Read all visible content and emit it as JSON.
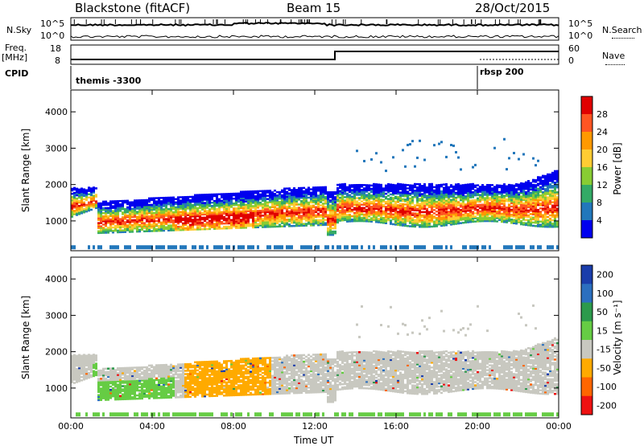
{
  "header": {
    "station": "Blackstone (fitACF)",
    "beam": "Beam 15",
    "date": "28/Oct/2015"
  },
  "top_panels": {
    "nsky_label": "N.Sky",
    "nsky_ticks": [
      "10^5",
      "10^0"
    ],
    "nsearch_label": "N.Search",
    "nsearch_ticks": [
      "10^5",
      "10^0"
    ],
    "freq_label_1": "Freq.",
    "freq_label_2": "[MHz]",
    "freq_ticks": [
      "18",
      "8"
    ],
    "nave_label": "Nave",
    "nave_ticks": [
      "60",
      "0"
    ],
    "cpid_label": "CPID",
    "cpid_segments": [
      {
        "label": "themis -3300",
        "start_hour": 0,
        "end_hour": 20
      },
      {
        "label": "rbsp 200",
        "start_hour": 20,
        "end_hour": 24
      }
    ]
  },
  "chart_data": [
    {
      "type": "heatmap",
      "panel": "power",
      "ylabel": "Slant Range [km]",
      "xlabel": "Time UT",
      "x_unit": "hours UT",
      "xlim": [
        0,
        24
      ],
      "ylim": [
        180,
        4600
      ],
      "x_ticks": [
        "00:00",
        "04:00",
        "08:00",
        "12:00",
        "16:00",
        "20:00",
        "00:00"
      ],
      "y_ticks": [
        1000,
        2000,
        3000,
        4000
      ],
      "colorbar": {
        "label": "Power [dB]",
        "ticks": [
          "28",
          "24",
          "20",
          "16",
          "12",
          "8",
          "4"
        ],
        "colors": [
          "#e00000",
          "#ff5522",
          "#ff9900",
          "#ffcc33",
          "#88cc33",
          "#33aa66",
          "#2277bb",
          "#0000ee"
        ]
      },
      "features": [
        {
          "name": "main scatter band",
          "start_hour": 0.0,
          "end_hour": 12.8,
          "range_km": [
            700,
            1900
          ],
          "peak_db": 28
        },
        {
          "name": "post-midnight band",
          "start_hour": 13.0,
          "end_hour": 24.0,
          "range_km": [
            900,
            2000
          ],
          "peak_db": 24
        },
        {
          "name": "far range echoes",
          "start_hour": 14.0,
          "end_hour": 23.0,
          "range_km": [
            2400,
            3300
          ],
          "peak_db": 8
        }
      ]
    },
    {
      "type": "heatmap",
      "panel": "velocity",
      "ylabel": "Slant Range [km]",
      "xlabel": "Time UT",
      "x_unit": "hours UT",
      "xlim": [
        0,
        24
      ],
      "ylim": [
        180,
        4600
      ],
      "x_ticks": [
        "00:00",
        "04:00",
        "08:00",
        "12:00",
        "16:00",
        "20:00",
        "00:00"
      ],
      "y_ticks": [
        1000,
        2000,
        3000,
        4000
      ],
      "colorbar": {
        "label": "Velocity [m s⁻¹]",
        "ticks": [
          "200",
          "100",
          "50",
          "15",
          "-15",
          "-50",
          "-100",
          "-200"
        ],
        "colors": [
          "#1a3dab",
          "#2b6fbf",
          "#2c9a4c",
          "#66cc44",
          "#c8c8c0",
          "#ffaa00",
          "#ff6600",
          "#ee1111"
        ]
      },
      "features": [
        {
          "name": "ground scatter grey",
          "start_hour": 0.0,
          "end_hour": 24.0,
          "range_km": [
            800,
            2200
          ],
          "velocity": 0
        },
        {
          "name": "green band",
          "start_hour": 1.0,
          "end_hour": 5.0,
          "range_km": [
            500,
            1600
          ],
          "velocity": 40
        },
        {
          "name": "orange band",
          "start_hour": 5.5,
          "end_hour": 9.8,
          "range_km": [
            700,
            1700
          ],
          "velocity": -50
        }
      ]
    }
  ],
  "footer": {
    "xlabel": "Time UT"
  }
}
